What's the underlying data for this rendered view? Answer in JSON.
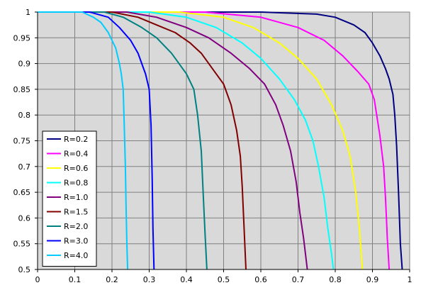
{
  "chart_data": {
    "type": "line",
    "title": "",
    "xlabel": "",
    "ylabel": "",
    "xlim": [
      0,
      1
    ],
    "ylim": [
      0.5,
      1
    ],
    "x_ticks": [
      "0",
      "0.1",
      "0.2",
      "0.3",
      "0.4",
      "0.5",
      "0.6",
      "0.7",
      "0.8",
      "0.9",
      "1"
    ],
    "y_ticks": [
      "0.5",
      "0.55",
      "0.6",
      "0.65",
      "0.7",
      "0.75",
      "0.8",
      "0.85",
      "0.9",
      "0.95",
      "1"
    ],
    "grid": true,
    "legend_position": "bottom-left",
    "plot_background": "#d9d9d9",
    "series": [
      {
        "name": "R=0.2",
        "color": "#000080",
        "x": [
          0.0,
          0.6,
          0.75,
          0.8,
          0.85,
          0.88,
          0.9,
          0.92,
          0.935,
          0.945,
          0.955,
          0.96,
          0.965,
          0.97,
          0.975,
          0.98
        ],
        "y": [
          1.0,
          1.0,
          0.996,
          0.99,
          0.975,
          0.96,
          0.94,
          0.915,
          0.89,
          0.87,
          0.84,
          0.8,
          0.74,
          0.65,
          0.55,
          0.5
        ]
      },
      {
        "name": "R=0.4",
        "color": "#ff00ff",
        "x": [
          0.0,
          0.45,
          0.6,
          0.7,
          0.77,
          0.82,
          0.86,
          0.89,
          0.905,
          0.92,
          0.93,
          0.935,
          0.94,
          0.945
        ],
        "y": [
          1.0,
          1.0,
          0.99,
          0.97,
          0.945,
          0.915,
          0.885,
          0.86,
          0.83,
          0.76,
          0.7,
          0.64,
          0.56,
          0.5
        ]
      },
      {
        "name": "R=0.6",
        "color": "#ffff00",
        "x": [
          0.0,
          0.38,
          0.5,
          0.58,
          0.65,
          0.7,
          0.75,
          0.79,
          0.82,
          0.84,
          0.855,
          0.865,
          0.873
        ],
        "y": [
          1.0,
          1.0,
          0.99,
          0.97,
          0.94,
          0.91,
          0.87,
          0.82,
          0.77,
          0.72,
          0.65,
          0.58,
          0.5
        ]
      },
      {
        "name": "R=0.8",
        "color": "#00ffff",
        "x": [
          0.0,
          0.3,
          0.4,
          0.48,
          0.55,
          0.6,
          0.65,
          0.69,
          0.72,
          0.74,
          0.755,
          0.77,
          0.78,
          0.79,
          0.795
        ],
        "y": [
          1.0,
          1.0,
          0.99,
          0.97,
          0.94,
          0.91,
          0.87,
          0.83,
          0.79,
          0.75,
          0.7,
          0.64,
          0.58,
          0.53,
          0.5
        ]
      },
      {
        "name": "R=1.0",
        "color": "#800080",
        "x": [
          0.0,
          0.24,
          0.32,
          0.4,
          0.46,
          0.52,
          0.57,
          0.61,
          0.64,
          0.66,
          0.68,
          0.695,
          0.705,
          0.715,
          0.725
        ],
        "y": [
          1.0,
          1.0,
          0.99,
          0.97,
          0.95,
          0.92,
          0.89,
          0.86,
          0.82,
          0.78,
          0.73,
          0.67,
          0.61,
          0.56,
          0.5
        ]
      },
      {
        "name": "R=1.5",
        "color": "#800000",
        "x": [
          0.0,
          0.2,
          0.27,
          0.32,
          0.37,
          0.41,
          0.44,
          0.47,
          0.5,
          0.52,
          0.535,
          0.545,
          0.55,
          0.555,
          0.56
        ],
        "y": [
          1.0,
          1.0,
          0.99,
          0.975,
          0.96,
          0.94,
          0.92,
          0.89,
          0.86,
          0.82,
          0.77,
          0.72,
          0.66,
          0.58,
          0.5
        ]
      },
      {
        "name": "R=2.0",
        "color": "#008080",
        "x": [
          0.0,
          0.18,
          0.23,
          0.28,
          0.32,
          0.36,
          0.38,
          0.4,
          0.42,
          0.43,
          0.44,
          0.445,
          0.45,
          0.455
        ],
        "y": [
          1.0,
          1.0,
          0.99,
          0.97,
          0.95,
          0.92,
          0.9,
          0.88,
          0.85,
          0.8,
          0.73,
          0.65,
          0.57,
          0.5
        ]
      },
      {
        "name": "R=3.0",
        "color": "#0000ff",
        "x": [
          0.0,
          0.14,
          0.19,
          0.22,
          0.25,
          0.27,
          0.28,
          0.29,
          0.3,
          0.305,
          0.308,
          0.31,
          0.313
        ],
        "y": [
          1.0,
          1.0,
          0.99,
          0.97,
          0.945,
          0.92,
          0.9,
          0.88,
          0.85,
          0.78,
          0.68,
          0.58,
          0.5
        ]
      },
      {
        "name": "R=4.0",
        "color": "#00ccff",
        "x": [
          0.0,
          0.12,
          0.15,
          0.17,
          0.19,
          0.21,
          0.22,
          0.225,
          0.23,
          0.233,
          0.236,
          0.238,
          0.24,
          0.242
        ],
        "y": [
          1.0,
          1.0,
          0.99,
          0.98,
          0.96,
          0.93,
          0.9,
          0.88,
          0.85,
          0.78,
          0.7,
          0.62,
          0.55,
          0.5
        ]
      }
    ]
  }
}
